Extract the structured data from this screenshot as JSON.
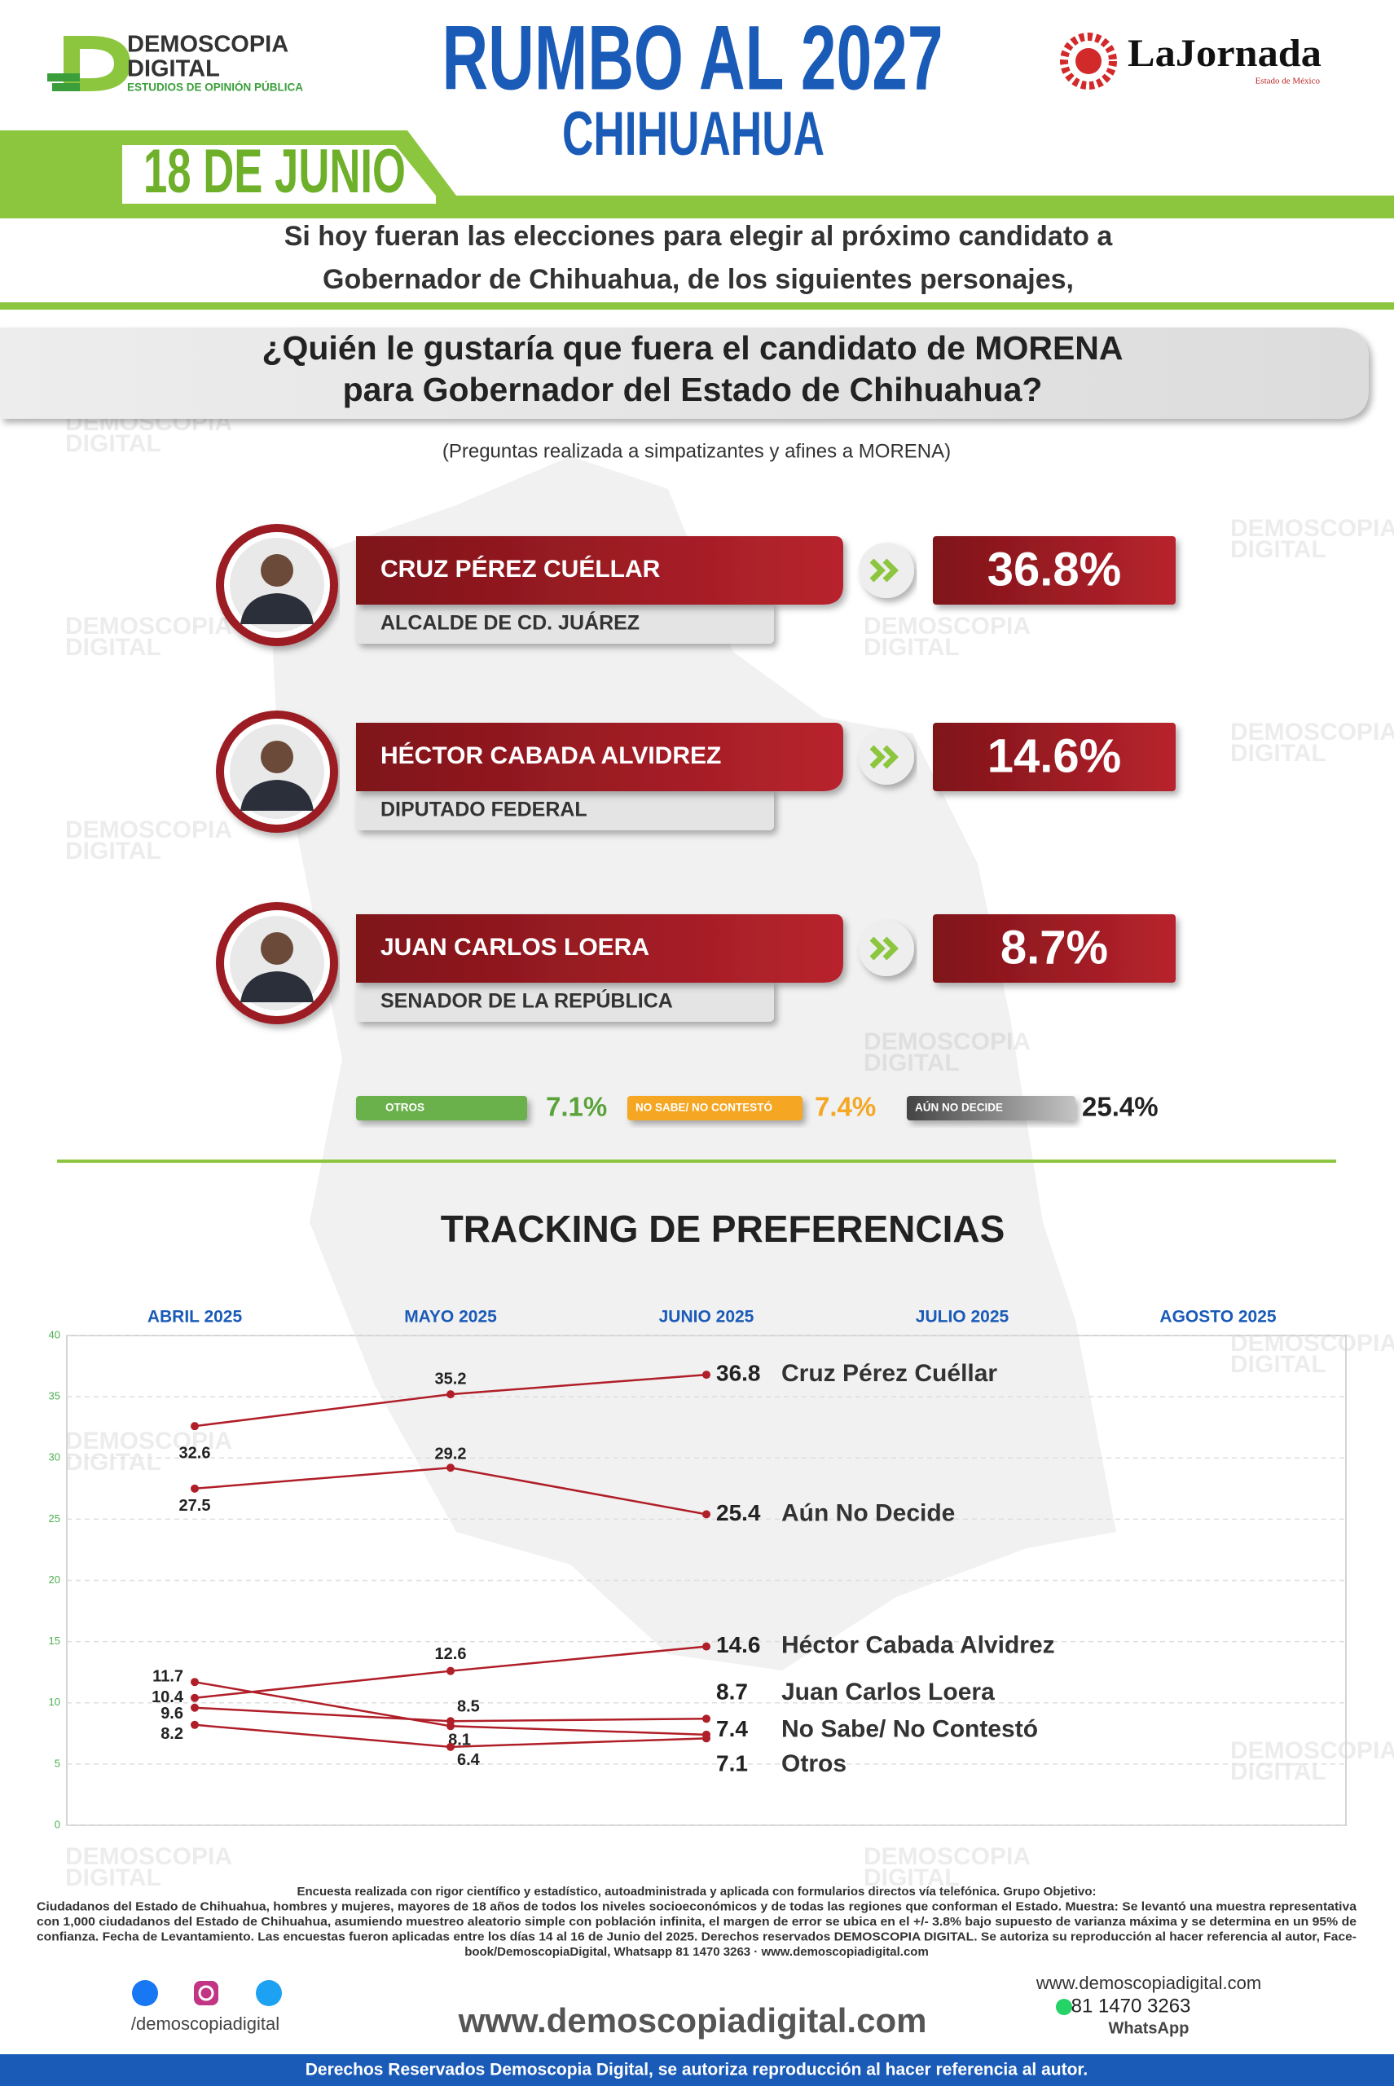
{
  "header": {
    "brand": "DEMOSCOPIA",
    "brand2": "DIGITAL",
    "brand_sub": "ESTUDIOS DE OPINIÓN PÚBLICA",
    "title": "RUMBO AL 2027",
    "subtitle": "CHIHUAHUA",
    "date": "18 DE JUNIO",
    "partner": "LaJornada",
    "partner_sub": "Estado de México"
  },
  "question": {
    "intro": [
      "Si hoy fueran las elecciones para elegir al próximo candidato a",
      "Gobernador de Chihuahua, de los siguientes personajes,"
    ],
    "main": [
      "¿Quién le gustaría que fuera el candidato de MORENA",
      "para Gobernador del Estado de Chihuahua?"
    ],
    "note": "(Preguntas realizada a simpatizantes y afines a MORENA)"
  },
  "candidates": [
    {
      "name": "CRUZ PÉREZ CUÉLLAR",
      "role": "ALCALDE DE CD. JUÁREZ",
      "result": "36.8%"
    },
    {
      "name": "HÉCTOR CABADA ALVIDREZ",
      "role": "DIPUTADO FEDERAL",
      "result": "14.6%"
    },
    {
      "name": "JUAN CARLOS LOERA",
      "role": "SENADOR DE LA REPÚBLICA",
      "result": "8.7%"
    }
  ],
  "others": [
    {
      "label": "OTROS",
      "result": "7.1%"
    },
    {
      "label": "NO SABE/ NO CONTESTÓ",
      "result": "7.4%"
    },
    {
      "label": "AÚN NO DECIDE",
      "result": "25.4%"
    }
  ],
  "chart_data": {
    "type": "line",
    "title": "TRACKING DE PREFERENCIAS",
    "categories": [
      "ABRIL 2025",
      "MAYO 2025",
      "JUNIO 2025",
      "JULIO 2025",
      "AGOSTO 2025"
    ],
    "ylim": [
      0,
      40
    ],
    "yticks": [
      0,
      5,
      10,
      15,
      20,
      25,
      30,
      35,
      40
    ],
    "grid": true,
    "series": [
      {
        "name": "Cruz Pérez Cuéllar",
        "color": "#b01e28",
        "values": [
          32.6,
          35.2,
          36.8,
          null,
          null
        ]
      },
      {
        "name": "Aún No Decide",
        "color": "#b01e28",
        "values": [
          27.5,
          29.2,
          25.4,
          null,
          null
        ]
      },
      {
        "name": "Héctor Cabada Alvidrez",
        "color": "#b01e28",
        "values": [
          10.4,
          12.6,
          14.6,
          null,
          null
        ]
      },
      {
        "name": "Juan Carlos Loera",
        "color": "#b01e28",
        "values": [
          9.6,
          8.5,
          8.7,
          null,
          null
        ]
      },
      {
        "name": "No Sabe/ No Contestó",
        "color": "#b01e28",
        "values": [
          11.7,
          8.1,
          7.4,
          null,
          null
        ]
      },
      {
        "name": "Otros",
        "color": "#b01e28",
        "values": [
          8.2,
          6.4,
          7.1,
          null,
          null
        ]
      }
    ]
  },
  "footer": {
    "methodology": [
      "Encuesta realizada con rigor científico y estadístico, autoadministrada y aplicada con formularios directos vía telefónica. Grupo Objetivo:",
      "Ciudadanos del Estado de Chihuahua, hombres y mujeres, mayores de 18 años de todos los niveles socioeconómicos y de todas las regiones que conforman el Estado. Muestra: Se levantó una muestra representativa",
      "con 1,000 ciudadanos del Estado de Chihuahua, asumiendo muestreo aleatorio simple con población infinita, el margen de error se ubica en el +/- 3.8% bajo supuesto de varianza máxima y se determina en un 95% de",
      "confianza. Fecha de Levantamiento. Las encuestas fueron aplicadas entre los días 14 al 16 de Junio del 2025. Derechos reservados DEMOSCOPIA DIGITAL. Se autoriza su reproducción al hacer referencia al autor, Face-",
      "book/DemoscopiaDigital, Whatsapp 81 1470 3263 · www.demoscopiadigital.com"
    ],
    "social": "/demoscopiadigital",
    "website": "www.demoscopiadigital.com",
    "contact_site": "www.demoscopiadigital.com",
    "phone": "81 1470 3263",
    "whatsapp": "WhatsApp",
    "rights": "Derechos Reservados Demoscopia Digital, se autoriza reproducción al hacer referencia al autor."
  }
}
